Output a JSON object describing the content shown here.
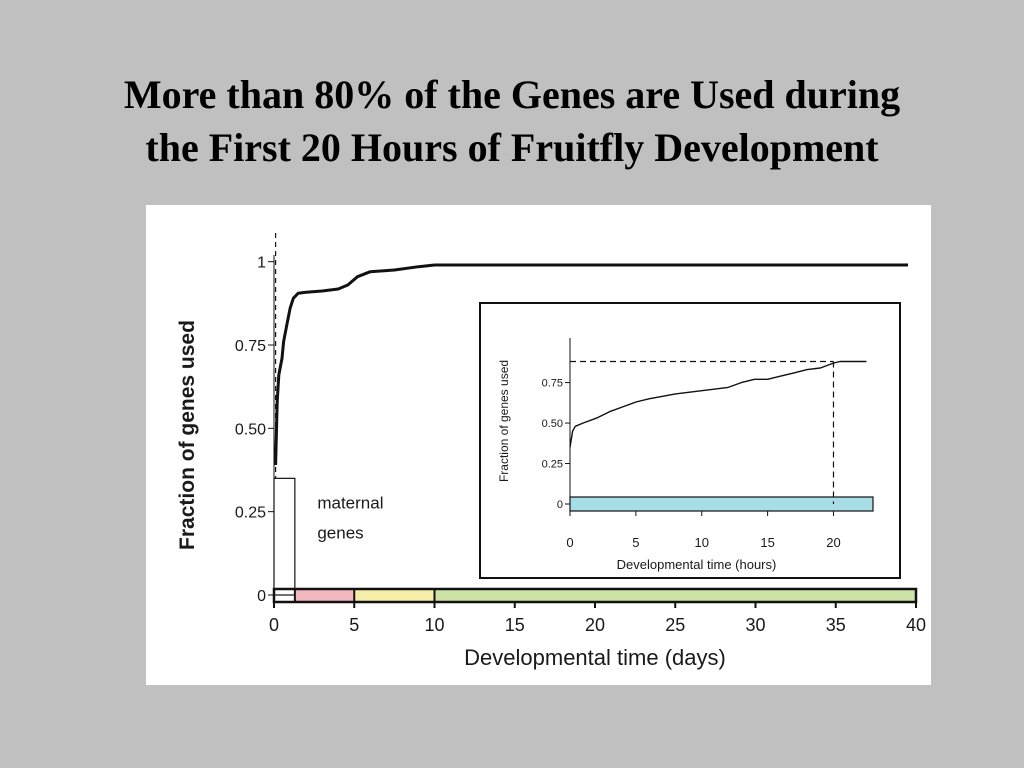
{
  "slide": {
    "title_line1": "More than 80% of the Genes are Used during",
    "title_line2": "the First 20 Hours of Fruitfly Development"
  },
  "colors": {
    "background": "#c0c0c0",
    "figure_background": "#ffffff",
    "line": "#111111",
    "band_pink": "#f2b8c0",
    "band_yellow": "#f4eea8",
    "band_green": "#cde3a8",
    "band_cyan": "#a8dde6"
  },
  "chart_data": [
    {
      "type": "line",
      "title": "",
      "xlabel": "Developmental time (days)",
      "ylabel": "Fraction of genes used",
      "xlim": [
        0,
        40
      ],
      "ylim": [
        0,
        1.05
      ],
      "x_ticks": [
        0,
        5,
        10,
        15,
        20,
        25,
        30,
        35,
        40
      ],
      "y_ticks": [
        0,
        0.25,
        0.5,
        0.75,
        1
      ],
      "y_tick_labels": [
        "0",
        "0.25",
        "0.50",
        "0.75",
        "1"
      ],
      "grid": false,
      "series": [
        {
          "x": [
            0.1,
            0.2,
            0.3,
            0.5,
            0.6,
            0.8,
            1.0,
            1.2,
            1.5,
            2.0,
            3.0,
            4.0,
            4.6,
            5.2,
            6.0,
            7.5,
            9.0,
            10.0,
            12.0,
            20.0,
            30.0,
            39.5
          ],
          "y": [
            0.39,
            0.58,
            0.66,
            0.71,
            0.76,
            0.81,
            0.86,
            0.89,
            0.905,
            0.908,
            0.912,
            0.918,
            0.93,
            0.955,
            0.97,
            0.975,
            0.985,
            0.99,
            0.99,
            0.99,
            0.99,
            0.99
          ]
        }
      ],
      "annotations": [
        {
          "text": "maternal",
          "x": 2.7,
          "y": 0.26
        },
        {
          "text": "genes",
          "x": 2.7,
          "y": 0.17
        }
      ],
      "maternal_bar": {
        "x": [
          0,
          1.3
        ],
        "value": 0.35
      },
      "stage_bands": [
        {
          "x": [
            1.3,
            5
          ],
          "color": "#f2b8c0"
        },
        {
          "x": [
            5,
            10
          ],
          "color": "#f4eea8"
        },
        {
          "x": [
            10,
            40
          ],
          "color": "#cde3a8"
        }
      ]
    },
    {
      "type": "line",
      "title": "",
      "xlabel": "Developmental time (hours)",
      "ylabel": "Fraction of genes used",
      "xlim": [
        0,
        23
      ],
      "ylim": [
        0,
        1.05
      ],
      "x_ticks": [
        0,
        5,
        10,
        15,
        20
      ],
      "y_ticks": [
        0,
        0.25,
        0.5,
        0.75
      ],
      "y_tick_labels": [
        "0",
        "0.25",
        "0.50",
        "0.75"
      ],
      "grid": false,
      "series": [
        {
          "x": [
            0,
            0.2,
            0.4,
            1,
            2,
            3,
            4,
            5,
            6,
            8,
            10,
            12,
            13,
            14,
            15,
            16,
            17,
            18,
            19,
            20,
            20.5,
            22.5
          ],
          "y": [
            0.35,
            0.45,
            0.48,
            0.5,
            0.53,
            0.57,
            0.6,
            0.63,
            0.65,
            0.68,
            0.7,
            0.72,
            0.75,
            0.77,
            0.77,
            0.79,
            0.81,
            0.83,
            0.84,
            0.87,
            0.88,
            0.88
          ]
        }
      ],
      "reference_lines": {
        "y": 0.88,
        "x": 20
      },
      "stage_bands": [
        {
          "x": [
            0,
            23
          ],
          "color": "#a8dde6"
        }
      ]
    }
  ]
}
